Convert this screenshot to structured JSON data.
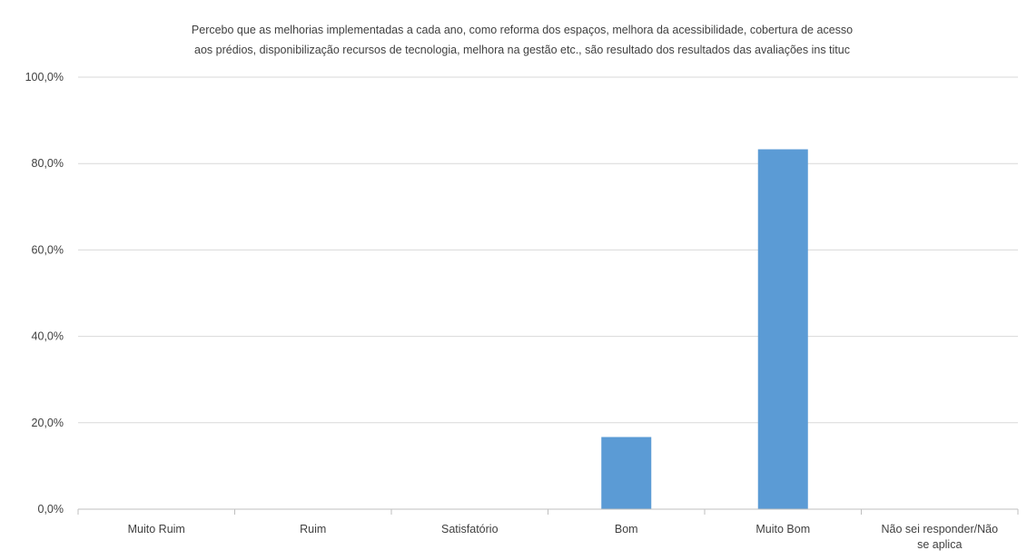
{
  "chart_data": {
    "type": "bar",
    "title_lines": [
      "Percebo que as melhorias implementadas a cada ano, como reforma dos espaços, melhora da acessibilidade,  cobertura de acesso",
      "aos prédios, disponibilização recursos de tecnologia, melhora na gestão etc.,  são resultado dos resultados das avaliações ins tituc"
    ],
    "categories": [
      [
        "Muito Ruim"
      ],
      [
        "Ruim"
      ],
      [
        "Satisfatório"
      ],
      [
        "Bom"
      ],
      [
        "Muito Bom"
      ],
      [
        "Não sei responder/Não",
        "se aplica"
      ]
    ],
    "values": [
      0,
      0,
      0,
      16.7,
      83.3,
      0
    ],
    "y_ticks": [
      "0,0%",
      "20,0%",
      "40,0%",
      "60,0%",
      "80,0%",
      "100,0%"
    ],
    "ylim": [
      0,
      100
    ],
    "grid": true,
    "bar_color": "#5B9BD5",
    "grid_color": "#D9D9D9",
    "axis_color": "#BFBFBF",
    "text_color": "#404040"
  }
}
